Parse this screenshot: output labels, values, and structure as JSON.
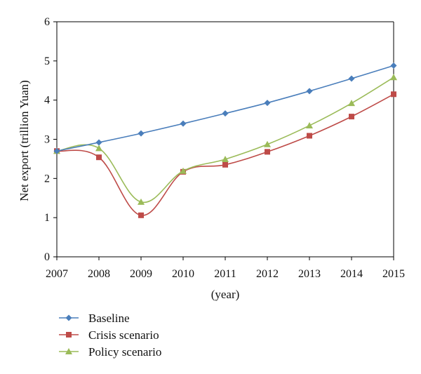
{
  "chart_data": {
    "type": "line",
    "title": "",
    "xlabel": "(year)",
    "ylabel": "Net export (trillion Yuan)",
    "x": [
      "2007",
      "2008",
      "2009",
      "2010",
      "2011",
      "2012",
      "2013",
      "2014",
      "2015"
    ],
    "ylim": [
      0,
      6
    ],
    "yticks": [
      0,
      1,
      2,
      3,
      4,
      5,
      6
    ],
    "grid": false,
    "legend_position": "bottom-left",
    "series": [
      {
        "name": "Baseline",
        "color": "#4a7ebb",
        "marker": "diamond",
        "values": [
          2.7,
          2.92,
          3.15,
          3.4,
          3.66,
          3.93,
          4.23,
          4.55,
          4.88
        ]
      },
      {
        "name": "Crisis scenario",
        "color": "#be4b48",
        "marker": "square",
        "values": [
          2.7,
          2.54,
          1.06,
          2.17,
          2.35,
          2.68,
          3.09,
          3.58,
          4.15
        ]
      },
      {
        "name": "Policy scenario",
        "color": "#9bbb59",
        "marker": "triangle",
        "values": [
          2.7,
          2.77,
          1.4,
          2.19,
          2.49,
          2.87,
          3.35,
          3.92,
          4.58
        ]
      }
    ]
  }
}
